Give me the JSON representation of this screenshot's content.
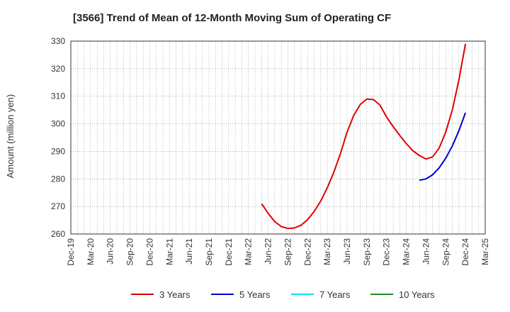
{
  "chart_data": {
    "type": "line",
    "title": "[3566]  Trend of Mean of 12-Month Moving Sum of Operating CF",
    "xlabel": "",
    "ylabel": "Amount (million yen)",
    "ylim": [
      260,
      330
    ],
    "yticks": [
      260,
      270,
      280,
      290,
      300,
      310,
      320,
      330
    ],
    "x_range": [
      "Dec-19",
      "Mar-25"
    ],
    "xtick_labels": [
      "Dec-19",
      "Mar-20",
      "Jun-20",
      "Sep-20",
      "Dec-20",
      "Mar-21",
      "Jun-21",
      "Sep-21",
      "Dec-21",
      "Mar-22",
      "Jun-22",
      "Sep-22",
      "Dec-22",
      "Mar-23",
      "Jun-23",
      "Sep-23",
      "Dec-23",
      "Mar-24",
      "Jun-24",
      "Sep-24",
      "Dec-24",
      "Mar-25"
    ],
    "grid": true,
    "legend_position": "bottom",
    "series": [
      {
        "name": "3 Years",
        "color": "#e00000",
        "x": [
          "May-22",
          "Jun-22",
          "Jul-22",
          "Aug-22",
          "Sep-22",
          "Oct-22",
          "Nov-22",
          "Dec-22",
          "Jan-23",
          "Feb-23",
          "Mar-23",
          "Apr-23",
          "May-23",
          "Jun-23",
          "Jul-23",
          "Aug-23",
          "Sep-23",
          "Oct-23",
          "Nov-23",
          "Dec-23",
          "Jan-24",
          "Feb-24",
          "Mar-24",
          "Apr-24",
          "May-24",
          "Jun-24",
          "Jul-24",
          "Aug-24",
          "Sep-24",
          "Oct-24",
          "Nov-24",
          "Dec-24"
        ],
        "values": [
          271,
          267.5,
          264.5,
          262.7,
          262,
          262.2,
          263.2,
          265.2,
          268.2,
          272,
          276.8,
          282.5,
          289.2,
          297,
          303,
          307,
          309,
          308.8,
          306.8,
          302.5,
          299,
          295.8,
          292.8,
          290.2,
          288.5,
          287.2,
          288,
          291.2,
          297,
          305,
          316,
          329
        ]
      },
      {
        "name": "5 Years",
        "color": "#0000cc",
        "x": [
          "May-24",
          "Jun-24",
          "Jul-24",
          "Aug-24",
          "Sep-24",
          "Oct-24",
          "Nov-24",
          "Dec-24"
        ],
        "values": [
          279.5,
          280,
          281.5,
          284,
          287.5,
          292,
          297.5,
          304
        ]
      },
      {
        "name": "7 Years",
        "color": "#00e5ee",
        "x": [],
        "values": []
      },
      {
        "name": "10 Years",
        "color": "#228b22",
        "x": [],
        "values": []
      }
    ]
  }
}
